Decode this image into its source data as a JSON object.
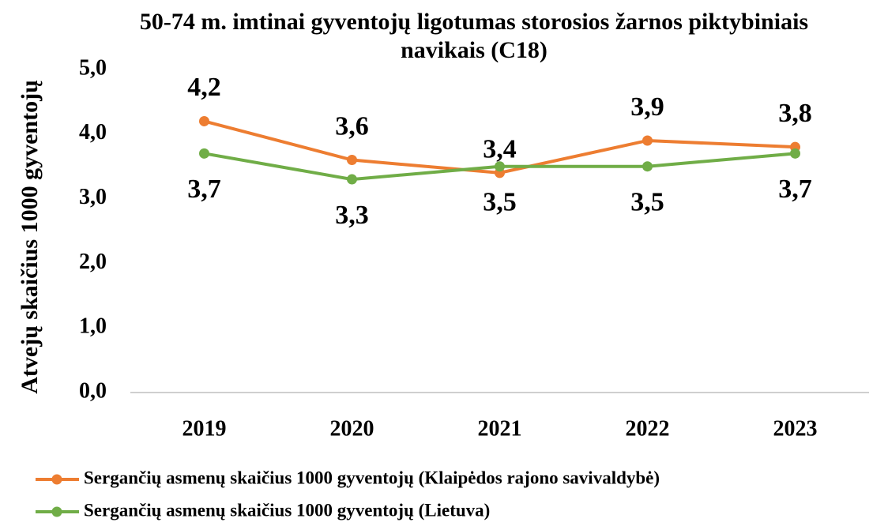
{
  "chart_data": {
    "type": "line",
    "title": "50-74 m. imtinai gyventojų ligotumas storosios žarnos piktybiniais navikais (C18)",
    "y_label": "Atvejų skaičius 1000 gyventojų",
    "categories": [
      "2019",
      "2020",
      "2021",
      "2022",
      "2023"
    ],
    "series": [
      {
        "name": "Sergančių asmenų skaičius 1000 gyventojų (Klaipėdos rajono savivaldybė)",
        "color": "#ed7d31",
        "values": [
          4.2,
          3.6,
          3.4,
          3.9,
          3.8
        ],
        "value_labels": [
          "4,2",
          "3,6",
          "3,4",
          "3,9",
          "3,8"
        ]
      },
      {
        "name": "Sergančių asmenų skaičius 1000 gyventojų (Lietuva)",
        "color": "#70ad47",
        "values": [
          3.7,
          3.3,
          3.5,
          3.5,
          3.7
        ],
        "value_labels": [
          "3,7",
          "3,3",
          "3,5",
          "3,5",
          "3,7"
        ]
      }
    ],
    "ylim": [
      0,
      5
    ],
    "yticks": [
      {
        "value": 0,
        "label": "0,0"
      },
      {
        "value": 1,
        "label": "1,0"
      },
      {
        "value": 2,
        "label": "2,0"
      },
      {
        "value": 3,
        "label": "3,0"
      },
      {
        "value": 4,
        "label": "4,0"
      },
      {
        "value": 5,
        "label": "5,0"
      }
    ],
    "grid": false,
    "legend": "bottom"
  }
}
